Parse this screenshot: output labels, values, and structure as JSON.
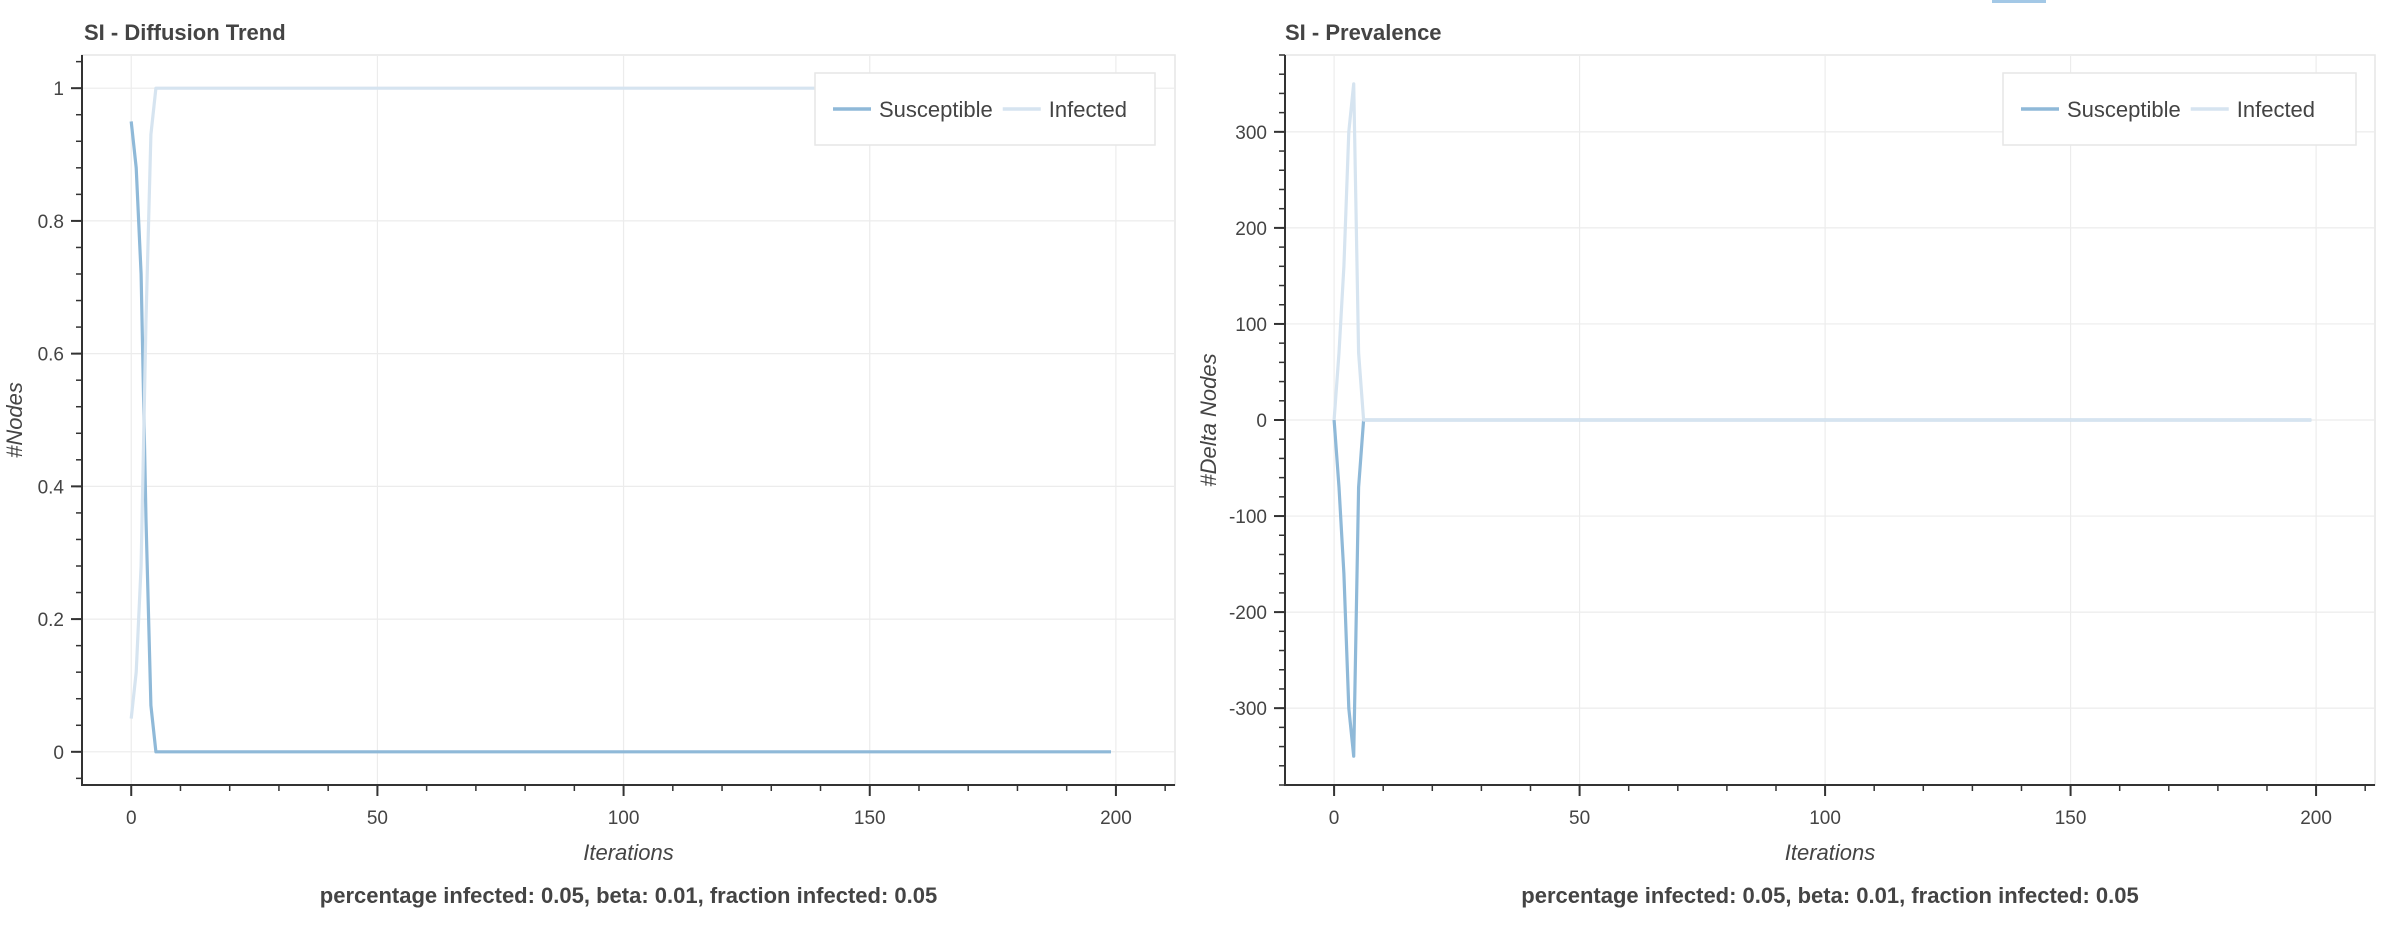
{
  "colors": {
    "susceptible": "#8FB9D8",
    "infected": "#D6E4F0",
    "grid": "#ECECEC",
    "axis": "#333333",
    "border": "#E6E6E6",
    "text": "#444444",
    "accent": "#A3C8E6"
  },
  "chart_data": [
    {
      "type": "line",
      "title": "SI - Diffusion Trend",
      "xlabel": "Iterations",
      "ylabel": "#Nodes",
      "caption": "percentage infected: 0.05, beta: 0.01, fraction infected: 0.05",
      "xlim": [
        -10,
        212
      ],
      "ylim": [
        -0.05,
        1.05
      ],
      "xticks": [
        0,
        50,
        100,
        150,
        200
      ],
      "yticks": [
        0,
        0.2,
        0.4,
        0.6,
        0.8,
        1
      ],
      "ytick_labels": [
        "0",
        "0.2",
        "0.4",
        "0.6",
        "0.8",
        "1"
      ],
      "x_minor_step": 10,
      "y_minor_step": 0.04,
      "legend_position": "top-right",
      "series": [
        {
          "name": "Susceptible",
          "color_key": "susceptible",
          "x": [
            0,
            1,
            2,
            3,
            4,
            5,
            6,
            199
          ],
          "y": [
            0.95,
            0.88,
            0.72,
            0.35,
            0.07,
            0.0,
            0.0,
            0.0
          ]
        },
        {
          "name": "Infected",
          "color_key": "infected",
          "x": [
            0,
            1,
            2,
            3,
            4,
            5,
            6,
            199
          ],
          "y": [
            0.05,
            0.12,
            0.28,
            0.65,
            0.93,
            1.0,
            1.0,
            1.0
          ]
        }
      ]
    },
    {
      "type": "line",
      "title": "SI - Prevalence",
      "xlabel": "Iterations",
      "ylabel": "#Delta Nodes",
      "caption": "percentage infected: 0.05, beta: 0.01, fraction infected: 0.05",
      "xlim": [
        -10,
        212
      ],
      "ylim": [
        -380,
        380
      ],
      "xticks": [
        0,
        50,
        100,
        150,
        200
      ],
      "yticks": [
        -300,
        -200,
        -100,
        0,
        100,
        200,
        300
      ],
      "ytick_labels": [
        "-300",
        "-200",
        "-100",
        "0",
        "100",
        "200",
        "300"
      ],
      "x_minor_step": 10,
      "y_minor_step": 20,
      "legend_position": "top-right",
      "series": [
        {
          "name": "Susceptible",
          "color_key": "susceptible",
          "x": [
            0,
            1,
            2,
            3,
            4,
            5,
            6,
            199
          ],
          "y": [
            0,
            -70,
            -160,
            -300,
            -350,
            -70,
            0,
            0
          ]
        },
        {
          "name": "Infected",
          "color_key": "infected",
          "x": [
            0,
            1,
            2,
            3,
            4,
            5,
            6,
            199
          ],
          "y": [
            0,
            70,
            160,
            300,
            350,
            70,
            0,
            0
          ]
        }
      ]
    }
  ]
}
